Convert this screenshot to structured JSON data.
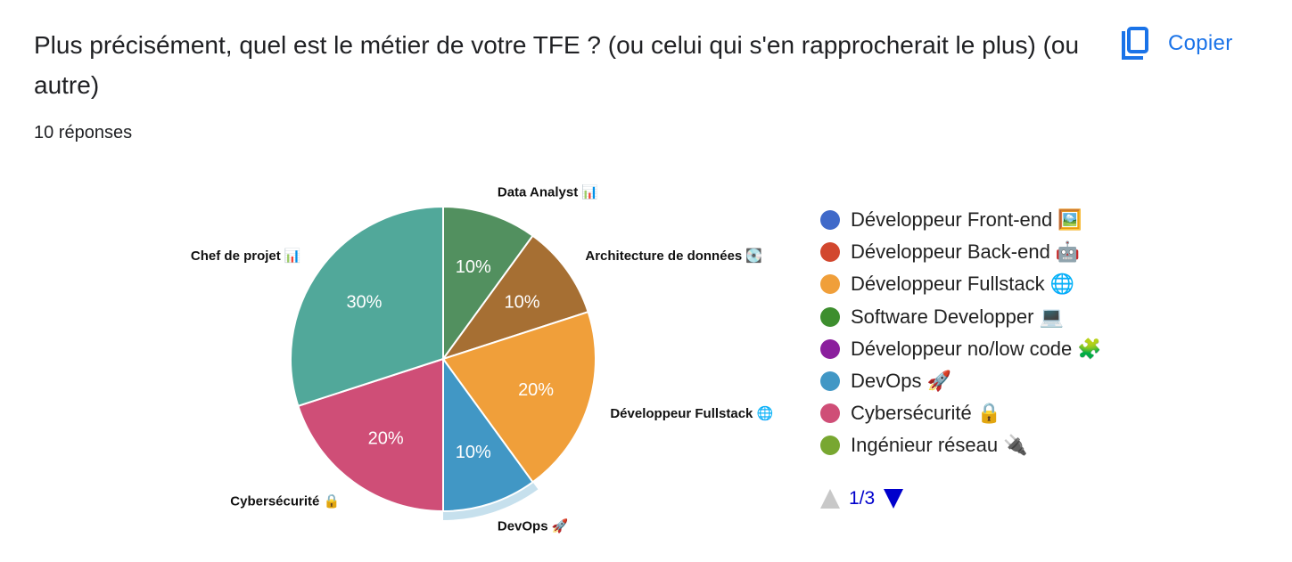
{
  "question": {
    "title": "Plus précisément, quel est le métier de votre TFE ? (ou celui qui s'en rapprocherait le plus) (ou autre)",
    "responses": "10 réponses",
    "copy_label": "Copier",
    "copy_icon": "copy-icon"
  },
  "chart_data": {
    "type": "pie",
    "slices": [
      {
        "label": "Data Analyst 📊",
        "value": 10,
        "percent_label": "10%",
        "color": "#52905f"
      },
      {
        "label": "Architecture de données 💽",
        "value": 10,
        "percent_label": "10%",
        "color": "#a66f33"
      },
      {
        "label": "Développeur Fullstack 🌐",
        "value": 20,
        "percent_label": "20%",
        "color": "#f09f3a"
      },
      {
        "label": "DevOps 🚀",
        "value": 10,
        "percent_label": "10%",
        "color": "#4197c5",
        "highlighted": true
      },
      {
        "label": "Cybersécurité 🔒",
        "value": 20,
        "percent_label": "20%",
        "color": "#cf4e77"
      },
      {
        "label": "Chef de projet 📊",
        "value": 30,
        "percent_label": "30%",
        "color": "#51a89a"
      }
    ],
    "legend_position": "right",
    "legend": [
      {
        "label": "Développeur Front-end 🖼️",
        "color": "#3f69c9"
      },
      {
        "label": "Développeur Back-end 🤖",
        "color": "#d2472e"
      },
      {
        "label": "Développeur Fullstack 🌐",
        "color": "#f09f3a"
      },
      {
        "label": "Software Developper 💻",
        "color": "#3d8e2e"
      },
      {
        "label": "Développeur no/low code 🧩",
        "color": "#8b1f9d"
      },
      {
        "label": "DevOps 🚀",
        "color": "#4197c5"
      },
      {
        "label": "Cybersécurité 🔒",
        "color": "#cf4e77"
      },
      {
        "label": "Ingénieur réseau 🔌",
        "color": "#78a731"
      }
    ],
    "legend_page": "1/3"
  }
}
